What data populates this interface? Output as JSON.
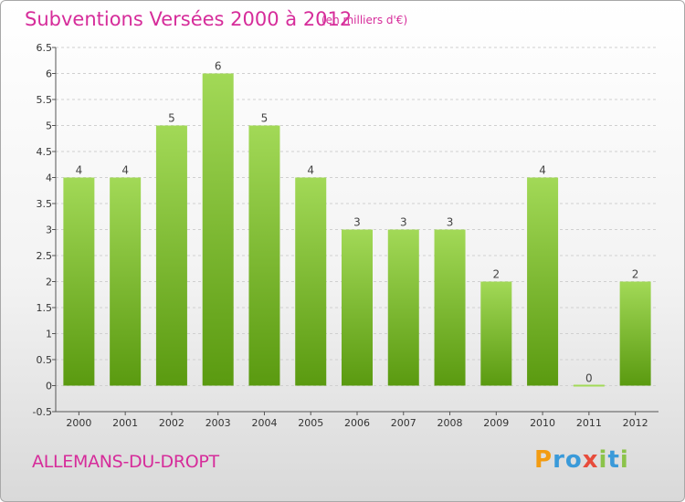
{
  "title": "Subventions Versées 2000 à 2012",
  "subtitle": "(en milliers d'€)",
  "commune": "ALLEMANS-DU-DROPT",
  "logo": {
    "letters": [
      "P",
      "r",
      "o",
      "x",
      "i",
      "t",
      "i"
    ],
    "colors": [
      "#f39c12",
      "#3a9ad9",
      "#3a9ad9",
      "#e74c3c",
      "#8bc34a",
      "#3a9ad9",
      "#8bc34a"
    ]
  },
  "colors": {
    "accent": "#d62c9a",
    "bar_light": "#a2d957",
    "bar_dark": "#5a9a10",
    "grid": "#d0d0d0"
  },
  "chart_data": {
    "type": "bar",
    "categories": [
      "2000",
      "2001",
      "2002",
      "2003",
      "2004",
      "2005",
      "2006",
      "2007",
      "2008",
      "2009",
      "2010",
      "2011",
      "2012"
    ],
    "values": [
      4,
      4,
      5,
      6,
      5,
      4,
      3,
      3,
      3,
      2,
      4,
      0,
      2
    ],
    "data_labels": [
      "4",
      "4",
      "5",
      "6",
      "5",
      "4",
      "3",
      "3",
      "3",
      "2",
      "4",
      "0",
      "2"
    ],
    "yticks": [
      -0.5,
      0,
      0.5,
      1,
      1.5,
      2,
      2.5,
      3,
      3.5,
      4,
      4.5,
      5,
      5.5,
      6,
      6.5
    ],
    "ytick_labels": [
      "-0.5",
      "0",
      "0.5",
      "1",
      "1.5",
      "2",
      "2.5",
      "3",
      "3.5",
      "4",
      "4.5",
      "5",
      "5.5",
      "6",
      "6.5"
    ],
    "ylim": [
      -0.5,
      6.5
    ],
    "grid": true
  }
}
